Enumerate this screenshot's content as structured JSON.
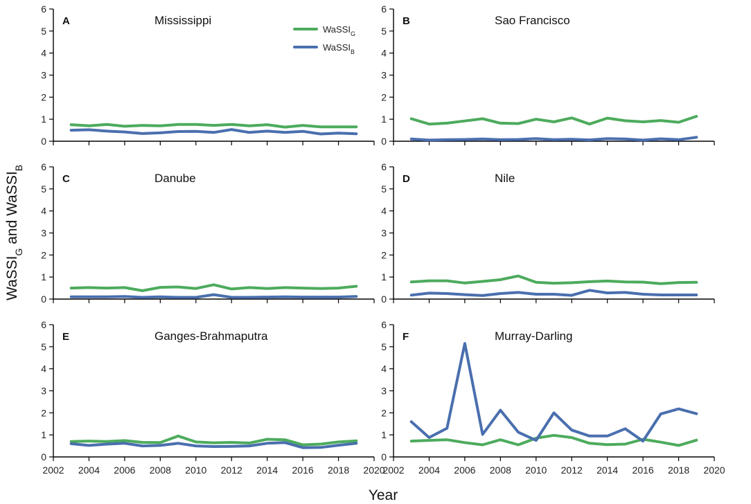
{
  "figure": {
    "ylabel": "WaSSI",
    "ylabel_sub_g": "G",
    "ylabel_mid": " and WaSSI",
    "ylabel_sub_b": "B",
    "xlabel": "Year"
  },
  "legend": {
    "items": [
      {
        "base": "WaSSI",
        "sub": "G",
        "color": "#4dab5d"
      },
      {
        "base": "WaSSI",
        "sub": "B",
        "color": "#4a6fae"
      }
    ]
  },
  "chart_data": [
    {
      "type": "line",
      "letter": "A",
      "title": "Mississippi",
      "xlim": [
        2002,
        2020
      ],
      "ylim": [
        0,
        6
      ],
      "xticks": [
        2002,
        2004,
        2006,
        2008,
        2010,
        2012,
        2014,
        2016,
        2018,
        2020
      ],
      "yticks": [
        0,
        1,
        2,
        3,
        4,
        5,
        6
      ],
      "x": [
        2003,
        2004,
        2005,
        2006,
        2007,
        2008,
        2009,
        2010,
        2011,
        2012,
        2013,
        2014,
        2015,
        2016,
        2017,
        2018,
        2019
      ],
      "series": [
        {
          "name": "WaSSI_G",
          "values": [
            0.75,
            0.7,
            0.76,
            0.68,
            0.72,
            0.7,
            0.76,
            0.76,
            0.72,
            0.76,
            0.7,
            0.75,
            0.64,
            0.72,
            0.65,
            0.65,
            0.65
          ]
        },
        {
          "name": "WaSSI_B",
          "values": [
            0.5,
            0.52,
            0.46,
            0.42,
            0.35,
            0.38,
            0.44,
            0.45,
            0.4,
            0.53,
            0.4,
            0.46,
            0.4,
            0.45,
            0.33,
            0.37,
            0.34
          ]
        }
      ]
    },
    {
      "type": "line",
      "letter": "B",
      "title": "Sao Francisco",
      "xlim": [
        2002,
        2020
      ],
      "ylim": [
        0,
        6
      ],
      "xticks": [
        2002,
        2004,
        2006,
        2008,
        2010,
        2012,
        2014,
        2016,
        2018,
        2020
      ],
      "yticks": [
        0,
        1,
        2,
        3,
        4,
        5,
        6
      ],
      "x": [
        2003,
        2004,
        2005,
        2006,
        2007,
        2008,
        2009,
        2010,
        2011,
        2012,
        2013,
        2014,
        2015,
        2016,
        2017,
        2018,
        2019
      ],
      "series": [
        {
          "name": "WaSSI_G",
          "values": [
            1.02,
            0.78,
            0.82,
            0.92,
            1.02,
            0.82,
            0.8,
            1.0,
            0.88,
            1.06,
            0.78,
            1.05,
            0.93,
            0.88,
            0.94,
            0.86,
            1.13
          ]
        },
        {
          "name": "WaSSI_B",
          "values": [
            0.1,
            0.05,
            0.07,
            0.08,
            0.1,
            0.07,
            0.08,
            0.12,
            0.07,
            0.09,
            0.06,
            0.12,
            0.1,
            0.05,
            0.11,
            0.07,
            0.18
          ]
        }
      ]
    },
    {
      "type": "line",
      "letter": "C",
      "title": "Danube",
      "xlim": [
        2002,
        2020
      ],
      "ylim": [
        0,
        6
      ],
      "xticks": [
        2002,
        2004,
        2006,
        2008,
        2010,
        2012,
        2014,
        2016,
        2018,
        2020
      ],
      "yticks": [
        0,
        1,
        2,
        3,
        4,
        5,
        6
      ],
      "x": [
        2003,
        2004,
        2005,
        2006,
        2007,
        2008,
        2009,
        2010,
        2011,
        2012,
        2013,
        2014,
        2015,
        2016,
        2017,
        2018,
        2019
      ],
      "series": [
        {
          "name": "WaSSI_G",
          "values": [
            0.5,
            0.52,
            0.5,
            0.52,
            0.38,
            0.53,
            0.55,
            0.48,
            0.65,
            0.46,
            0.52,
            0.48,
            0.52,
            0.5,
            0.48,
            0.5,
            0.58
          ]
        },
        {
          "name": "WaSSI_B",
          "values": [
            0.1,
            0.1,
            0.1,
            0.12,
            0.08,
            0.1,
            0.08,
            0.08,
            0.2,
            0.08,
            0.08,
            0.09,
            0.1,
            0.09,
            0.09,
            0.09,
            0.12
          ]
        }
      ]
    },
    {
      "type": "line",
      "letter": "D",
      "title": "Nile",
      "xlim": [
        2002,
        2020
      ],
      "ylim": [
        0,
        6
      ],
      "xticks": [
        2002,
        2004,
        2006,
        2008,
        2010,
        2012,
        2014,
        2016,
        2018,
        2020
      ],
      "yticks": [
        0,
        1,
        2,
        3,
        4,
        5,
        6
      ],
      "x": [
        2003,
        2004,
        2005,
        2006,
        2007,
        2008,
        2009,
        2010,
        2011,
        2012,
        2013,
        2014,
        2015,
        2016,
        2017,
        2018,
        2019
      ],
      "series": [
        {
          "name": "WaSSI_G",
          "values": [
            0.78,
            0.83,
            0.83,
            0.73,
            0.8,
            0.88,
            1.05,
            0.76,
            0.72,
            0.74,
            0.79,
            0.82,
            0.78,
            0.77,
            0.7,
            0.75,
            0.76
          ]
        },
        {
          "name": "WaSSI_B",
          "values": [
            0.18,
            0.27,
            0.25,
            0.2,
            0.16,
            0.25,
            0.3,
            0.22,
            0.22,
            0.17,
            0.4,
            0.28,
            0.3,
            0.22,
            0.19,
            0.19,
            0.19
          ]
        }
      ]
    },
    {
      "type": "line",
      "letter": "E",
      "title": "Ganges-Brahmaputra",
      "xlim": [
        2002,
        2020
      ],
      "ylim": [
        0,
        6
      ],
      "xticks": [
        2002,
        2004,
        2006,
        2008,
        2010,
        2012,
        2014,
        2016,
        2018,
        2020
      ],
      "yticks": [
        0,
        1,
        2,
        3,
        4,
        5,
        6
      ],
      "x": [
        2003,
        2004,
        2005,
        2006,
        2007,
        2008,
        2009,
        2010,
        2011,
        2012,
        2013,
        2014,
        2015,
        2016,
        2017,
        2018,
        2019
      ],
      "series": [
        {
          "name": "WaSSI_G",
          "values": [
            0.7,
            0.72,
            0.7,
            0.74,
            0.66,
            0.65,
            0.95,
            0.68,
            0.64,
            0.66,
            0.63,
            0.8,
            0.78,
            0.55,
            0.58,
            0.68,
            0.73
          ]
        },
        {
          "name": "WaSSI_B",
          "values": [
            0.6,
            0.52,
            0.58,
            0.62,
            0.5,
            0.52,
            0.62,
            0.5,
            0.47,
            0.48,
            0.5,
            0.62,
            0.65,
            0.42,
            0.43,
            0.53,
            0.62
          ]
        }
      ]
    },
    {
      "type": "line",
      "letter": "F",
      "title": "Murray-Darling",
      "xlim": [
        2002,
        2020
      ],
      "ylim": [
        0,
        6
      ],
      "xticks": [
        2002,
        2004,
        2006,
        2008,
        2010,
        2012,
        2014,
        2016,
        2018,
        2020
      ],
      "yticks": [
        0,
        1,
        2,
        3,
        4,
        5,
        6
      ],
      "x": [
        2003,
        2004,
        2005,
        2006,
        2007,
        2008,
        2009,
        2010,
        2011,
        2012,
        2013,
        2014,
        2015,
        2016,
        2017,
        2018,
        2019
      ],
      "series": [
        {
          "name": "WaSSI_G",
          "values": [
            0.72,
            0.75,
            0.78,
            0.65,
            0.55,
            0.78,
            0.55,
            0.85,
            0.98,
            0.88,
            0.62,
            0.56,
            0.58,
            0.8,
            0.67,
            0.52,
            0.76
          ]
        },
        {
          "name": "WaSSI_B",
          "values": [
            1.6,
            0.88,
            1.3,
            5.15,
            1.02,
            2.12,
            1.12,
            0.75,
            2.0,
            1.22,
            0.95,
            0.95,
            1.28,
            0.72,
            1.95,
            2.18,
            1.96
          ]
        }
      ]
    }
  ]
}
